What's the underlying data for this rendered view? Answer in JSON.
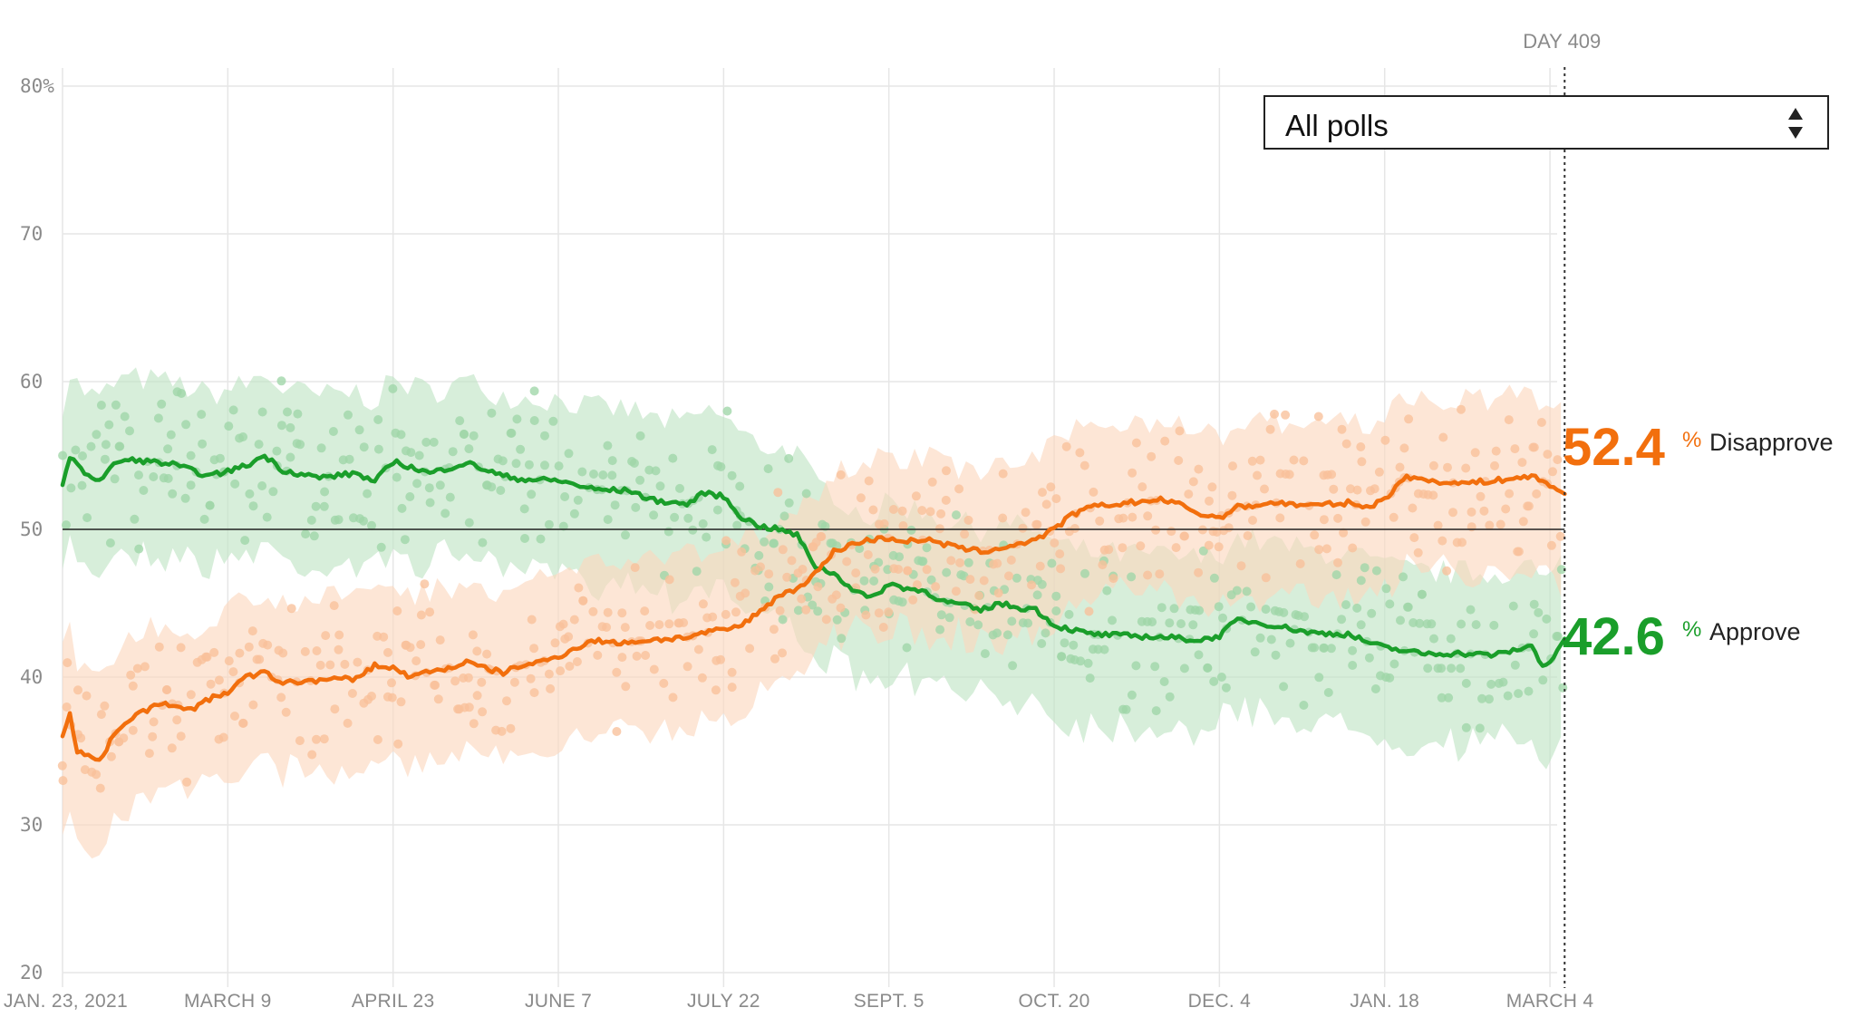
{
  "selector": {
    "selected": "All polls"
  },
  "current_day": {
    "label": "DAY 409"
  },
  "chart_data": {
    "type": "line",
    "y_ticks": [
      "80%",
      "70",
      "60",
      "50",
      "40",
      "30",
      "20"
    ],
    "ylim": [
      20,
      80
    ],
    "x_ticks": [
      "JAN. 23, 2021",
      "MARCH 9",
      "APRIL 23",
      "JUNE 7",
      "JULY 22",
      "SEPT. 5",
      "OCT. 20",
      "DEC. 4",
      "JAN. 18",
      "MARCH 4"
    ],
    "x_tick_days": [
      0,
      45,
      90,
      135,
      180,
      225,
      270,
      315,
      360,
      405
    ],
    "xlim_days": [
      0,
      409
    ],
    "reference_line": 50,
    "grid": true,
    "series": [
      {
        "name": "Approve",
        "color": "#1a9e2a",
        "band_color": "#bfe3c4",
        "dot_color": "#9fd6a8",
        "final_value": "42.6",
        "days": [
          0,
          2,
          5,
          10,
          15,
          20,
          30,
          40,
          50,
          55,
          60,
          70,
          80,
          85,
          90,
          100,
          110,
          120,
          125,
          135,
          145,
          155,
          160,
          170,
          175,
          180,
          185,
          190,
          195,
          200,
          205,
          210,
          215,
          220,
          225,
          230,
          235,
          240,
          245,
          250,
          255,
          260,
          265,
          270,
          275,
          280,
          290,
          300,
          310,
          315,
          320,
          330,
          340,
          350,
          355,
          360,
          365,
          370,
          380,
          390,
          395,
          400,
          403,
          405,
          409
        ],
        "values": [
          53.0,
          55.0,
          54.0,
          53.3,
          54.6,
          54.7,
          54.4,
          53.6,
          54.3,
          55.0,
          54.0,
          53.5,
          53.8,
          53.2,
          54.6,
          53.8,
          54.5,
          53.6,
          53.4,
          53.3,
          52.7,
          52.6,
          52.0,
          51.7,
          52.5,
          52.2,
          50.8,
          50.2,
          50.0,
          49.6,
          47.5,
          47.0,
          46.0,
          45.3,
          46.3,
          46.0,
          45.8,
          45.1,
          44.9,
          44.5,
          45.0,
          44.7,
          44.6,
          43.5,
          43.2,
          42.9,
          42.8,
          42.7,
          42.5,
          42.8,
          43.9,
          43.5,
          43.0,
          42.9,
          42.4,
          42.0,
          41.8,
          41.6,
          41.6,
          41.5,
          41.8,
          42.1,
          40.8,
          41.0,
          42.6
        ]
      },
      {
        "name": "Disapprove",
        "color": "#f26f0d",
        "band_color": "#fcd7bd",
        "dot_color": "#f9c09a",
        "final_value": "52.4",
        "days": [
          0,
          2,
          4,
          6,
          10,
          15,
          20,
          25,
          30,
          35,
          40,
          45,
          50,
          55,
          60,
          70,
          80,
          85,
          90,
          95,
          100,
          105,
          110,
          115,
          120,
          125,
          130,
          135,
          140,
          145,
          150,
          160,
          170,
          175,
          180,
          185,
          190,
          195,
          200,
          205,
          210,
          215,
          220,
          225,
          230,
          235,
          240,
          245,
          250,
          255,
          260,
          265,
          270,
          275,
          280,
          290,
          300,
          305,
          310,
          315,
          320,
          330,
          340,
          350,
          355,
          360,
          365,
          370,
          380,
          390,
          400,
          405,
          409
        ],
        "values": [
          36.0,
          37.5,
          35.0,
          34.8,
          34.3,
          36.5,
          37.5,
          38.0,
          38.2,
          37.8,
          38.5,
          39.0,
          40.0,
          40.3,
          39.6,
          39.8,
          39.9,
          40.8,
          40.6,
          40.0,
          40.4,
          40.6,
          41.0,
          40.6,
          40.3,
          40.8,
          41.0,
          41.4,
          42.0,
          42.5,
          42.3,
          42.5,
          42.7,
          43.0,
          43.2,
          43.5,
          44.5,
          45.5,
          46.0,
          47.0,
          48.5,
          49.0,
          49.3,
          49.4,
          49.2,
          49.3,
          49.0,
          48.7,
          48.5,
          48.7,
          49.0,
          49.3,
          50.0,
          51.0,
          51.5,
          51.8,
          52.0,
          51.6,
          51.0,
          50.8,
          51.5,
          51.8,
          51.6,
          51.8,
          51.5,
          52.0,
          53.5,
          53.4,
          53.1,
          53.3,
          53.6,
          53.0,
          52.4
        ]
      }
    ]
  }
}
